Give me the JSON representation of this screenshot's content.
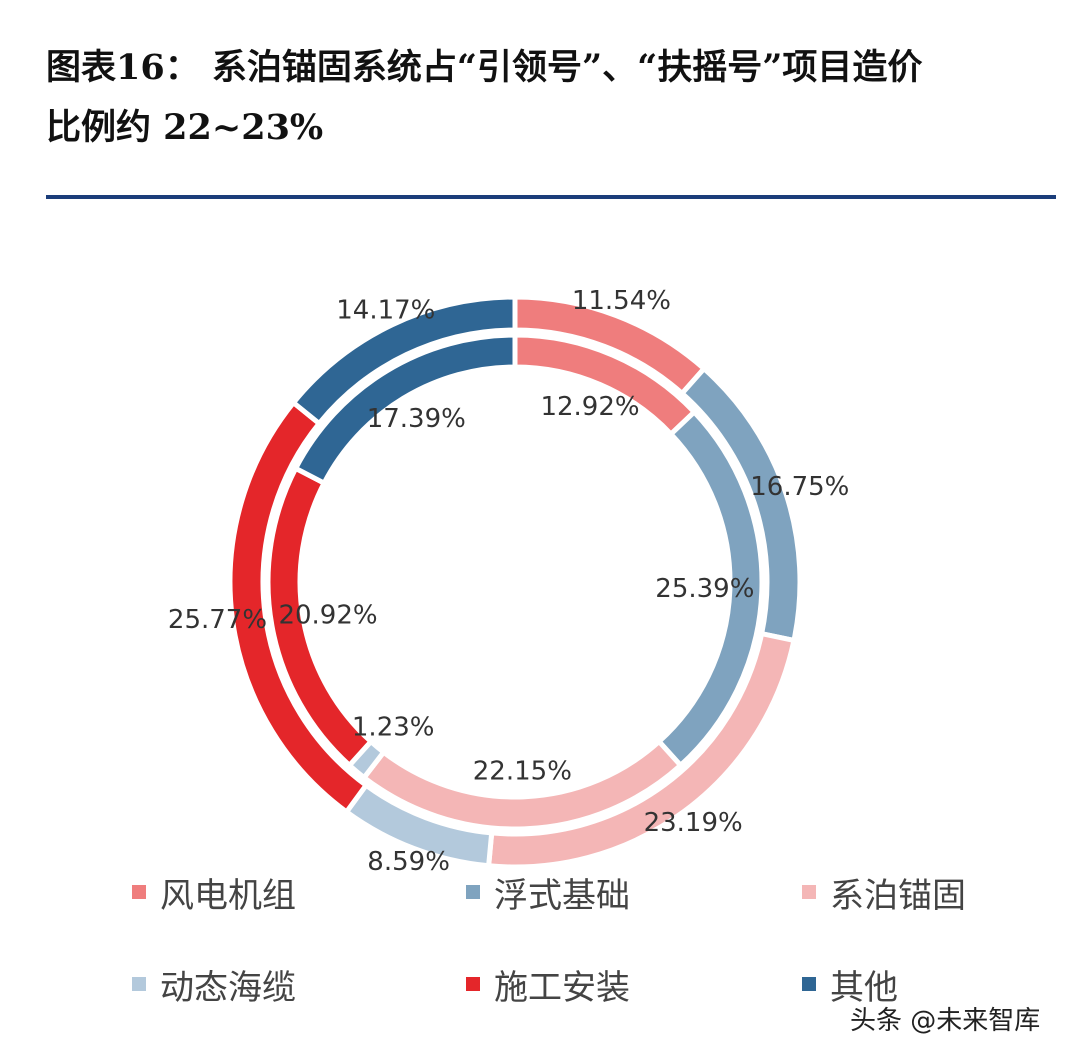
{
  "title": {
    "line1": "图表16：  系泊锚固系统占“引领号”、“扶摇号”项目造价",
    "line2": "比例约 22~23%"
  },
  "chart_data": {
    "type": "doughnut",
    "categories": [
      "风电机组",
      "浮式基础",
      "系泊锚固",
      "动态海缆",
      "施工安装",
      "其他"
    ],
    "colors": [
      "#ef7d7d",
      "#7fa3bf",
      "#f4b6b6",
      "#b3c9dc",
      "#e4262a",
      "#2f6694"
    ],
    "series": [
      {
        "values": [
          11.54,
          16.75,
          23.19,
          8.59,
          25.77,
          14.17
        ],
        "labels": [
          "11.54%",
          "16.75%",
          "23.19%",
          "8.59%",
          "25.77%",
          "14.17%"
        ]
      },
      {
        "values": [
          12.92,
          25.39,
          22.15,
          1.23,
          20.92,
          17.39
        ],
        "labels": [
          "12.92%",
          "25.39%",
          "22.15%",
          "1.23%",
          "20.92%",
          "17.39%"
        ]
      }
    ],
    "legend_position": "bottom"
  },
  "watermark": "头条 @未来智库"
}
